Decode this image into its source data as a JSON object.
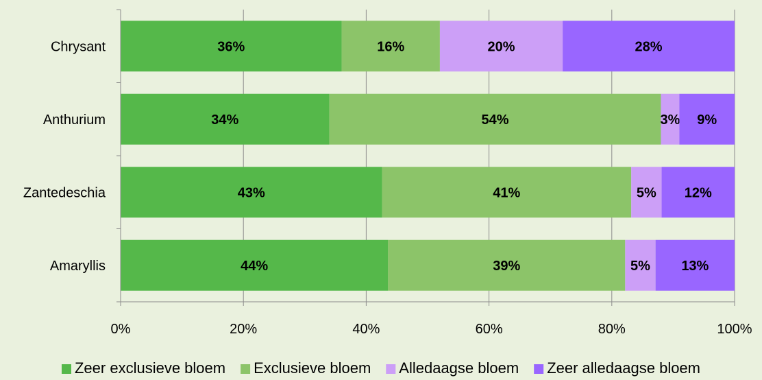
{
  "chart_data": {
    "type": "bar",
    "orientation": "horizontal",
    "stacked": "percent",
    "categories": [
      "Chrysant",
      "Anthurium",
      "Zantedeschia",
      "Amaryllis"
    ],
    "series": [
      {
        "name": "Zeer exclusieve bloem",
        "color": "#55b84a",
        "values": [
          36,
          34,
          43,
          44
        ],
        "labels": [
          "36%",
          "34%",
          "43%",
          "44%"
        ]
      },
      {
        "name": "Exclusieve bloem",
        "color": "#8cc469",
        "values": [
          16,
          54,
          41,
          39
        ],
        "labels": [
          "16%",
          "54%",
          "41%",
          "39%"
        ]
      },
      {
        "name": "Alledaagse bloem",
        "color": "#cc9ff7",
        "values": [
          20,
          3,
          5,
          5
        ],
        "labels": [
          "20%",
          "3%",
          "5%",
          "5%"
        ]
      },
      {
        "name": "Zeer alledaagse bloem",
        "color": "#9966ff",
        "values": [
          28,
          9,
          12,
          13
        ],
        "labels": [
          "28%",
          "9%",
          "12%",
          "13%"
        ]
      }
    ],
    "xlim": [
      0,
      100
    ],
    "xticks": [
      0,
      20,
      40,
      60,
      80,
      100
    ],
    "xtick_labels": [
      "0%",
      "20%",
      "40%",
      "60%",
      "80%",
      "100%"
    ],
    "grid": true,
    "legend_position": "bottom",
    "title": "",
    "xlabel": "",
    "ylabel": ""
  }
}
